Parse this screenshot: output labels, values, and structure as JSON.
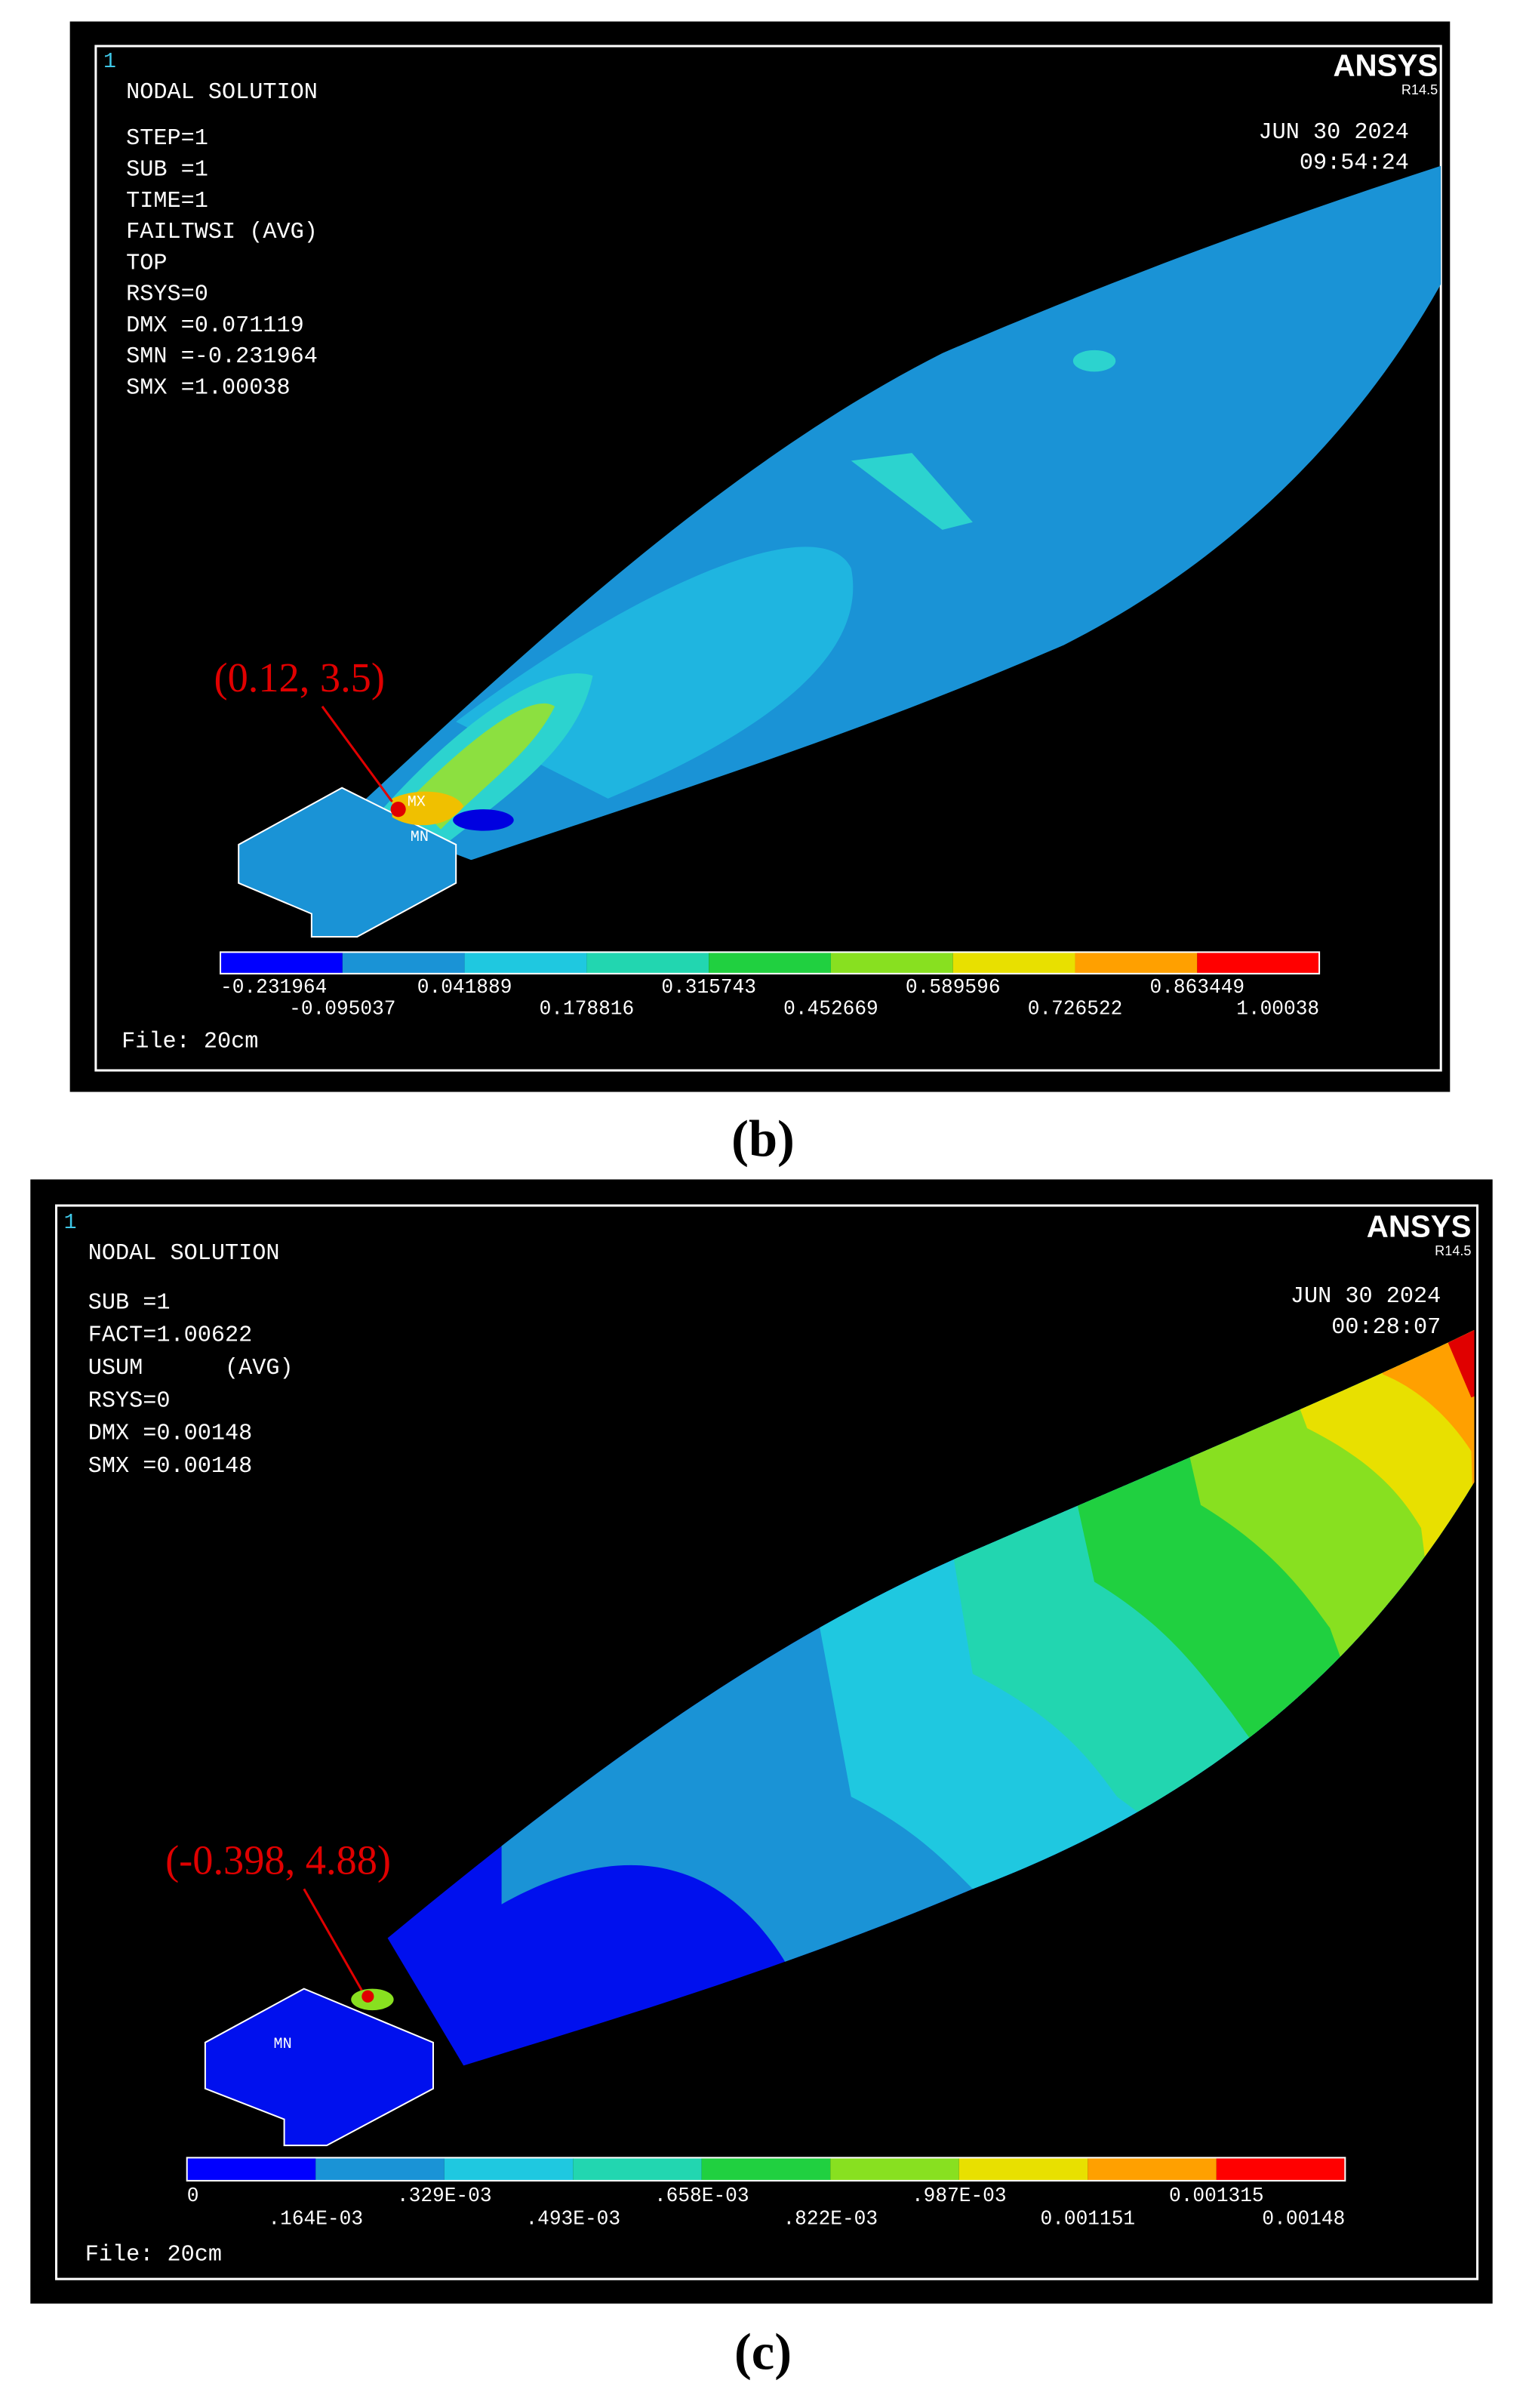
{
  "panels": [
    {
      "corner_number": "1",
      "title": "NODAL SOLUTION",
      "info": [
        "STEP=1",
        "SUB =1",
        "TIME=1",
        "FAILTWSI (AVG)",
        "TOP",
        "RSYS=0",
        "DMX =0.071119",
        "SMN =-0.231964",
        "SMX =1.00038"
      ],
      "brand": "ANSYS",
      "version": "R14.5",
      "date": "JUN 30 2024",
      "time": "09:54:24",
      "annotation": "(0.12, 3.5)",
      "marker_labels": [
        "MX",
        "MN"
      ],
      "legend_labels": [
        "-0.231964",
        "-0.095037",
        "0.041889",
        "0.178816",
        "0.315743",
        "0.452669",
        "0.589596",
        "0.726522",
        "0.863449",
        "1.00038"
      ],
      "file": "File: 20cm",
      "caption": "(b)"
    },
    {
      "corner_number": "1",
      "title": "NODAL SOLUTION",
      "info": [
        "SUB =1",
        "FACT=1.00622",
        "USUM      (AVG)",
        "RSYS=0",
        "DMX =0.00148",
        "SMX =0.00148"
      ],
      "brand": "ANSYS",
      "version": "R14.5",
      "date": "JUN 30 2024",
      "time": "00:28:07",
      "annotation": "(-0.398, 4.88)",
      "marker_labels": [
        "MN"
      ],
      "legend_labels": [
        "0",
        ".164E-03",
        ".329E-03",
        ".493E-03",
        ".658E-03",
        ".822E-03",
        ".987E-03",
        "0.001151",
        "0.001315",
        "0.00148"
      ],
      "file": "File: 20cm",
      "caption": "(c)"
    }
  ]
}
